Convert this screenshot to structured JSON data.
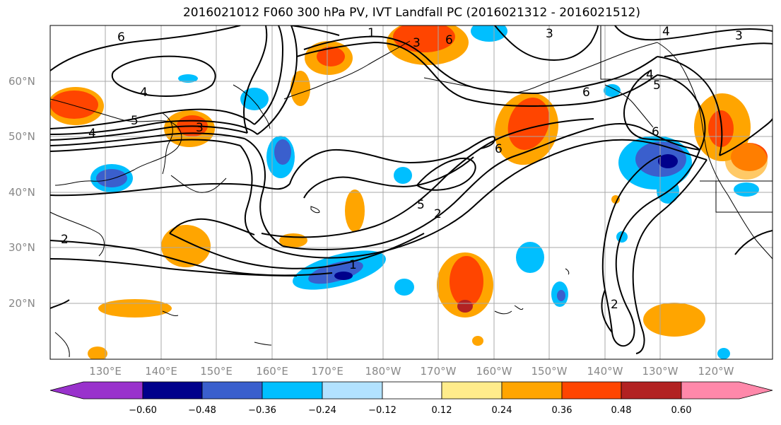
{
  "title": "2016021012 F060 300 hPa PV, IVT Landfall PC (2016021312 - 2016021512)",
  "lat_labels": [
    "60°N",
    "50°N",
    "40°N",
    "30°N",
    "20°N"
  ],
  "lon_labels": [
    "130°E",
    "140°E",
    "150°E",
    "160°E",
    "170°E",
    "180°W",
    "170°W",
    "160°W",
    "150°W",
    "140°W",
    "130°W",
    "120°W"
  ],
  "colorbar": {
    "tick_labels": [
      "−0.60",
      "−0.48",
      "−0.36",
      "−0.24",
      "−0.12",
      "0.12",
      "0.24",
      "0.36",
      "0.48",
      "0.60"
    ],
    "colors": [
      "#9932cc",
      "#00008b",
      "#3a5fcd",
      "#00bfff",
      "#b2e2ff",
      "#ffffff",
      "#ffec8b",
      "#ffa500",
      "#ff4500",
      "#b22222",
      "#ff88aa"
    ]
  },
  "contour_labels": [
    "6",
    "1",
    "3",
    "3",
    "4",
    "4",
    "3",
    "5",
    "4",
    "3",
    "6",
    "6",
    "6",
    "4",
    "5",
    "2",
    "6",
    "1",
    "2",
    "2",
    "5"
  ]
}
